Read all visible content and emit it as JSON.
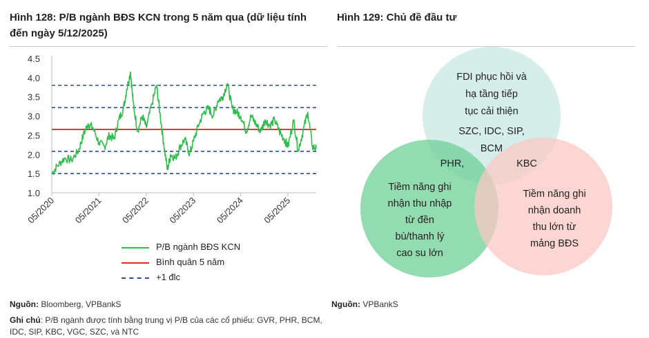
{
  "figure_left": {
    "title": "Hình 128: P/B ngành BĐS KCN trong 5 năm qua (dữ liệu tính đến ngày 5/12/2025)",
    "source_label": "Nguồn:",
    "source_text": "Bloomberg, VPBankS",
    "note_label": "Ghi chú",
    "note_text": ": P/B ngành được tính bằng trung vị P/B của các cổ phiếu: GVR, PHR, BCM, IDC, SIP, KBC, VGC, SZC, và NTC"
  },
  "figure_right": {
    "title": "Hình 129: Chủ đề đầu tư",
    "source_label": "Nguồn:",
    "source_text": "VPBankS",
    "venn": {
      "circles": [
        {
          "name": "top",
          "color": "#d3ede8",
          "lines": [
            "FDI phục hồi và",
            "hạ tầng tiếp",
            "tục cải thiện"
          ],
          "tickers": [
            "SZC, IDC, SIP,",
            "BCM"
          ]
        },
        {
          "name": "left",
          "color": "#6fcf97",
          "lines": [
            "Tiềm năng ghi",
            "nhận thu nhập",
            "từ đền",
            "bù/thanh lý",
            "cao su lớn"
          ],
          "tickers": [
            "PHR,"
          ]
        },
        {
          "name": "right",
          "color": "#f9c8c4",
          "lines": [
            "Tiềm năng ghi",
            "nhận doanh",
            "thu lớn từ",
            "mảng BĐS"
          ],
          "tickers": [
            "KBC"
          ]
        }
      ]
    }
  },
  "chart_data": {
    "type": "line",
    "title": "",
    "xlabel": "",
    "ylabel": "",
    "ylim": [
      1.0,
      4.5
    ],
    "yticks": [
      "4.5",
      "4.0",
      "3.5",
      "3.0",
      "2.5",
      "2.0",
      "1.5",
      "1.0"
    ],
    "xticks": [
      "05/2020",
      "05/2021",
      "05/2022",
      "05/2023",
      "05/2024",
      "05/2025"
    ],
    "xtick_values": [
      2020.333,
      2021.333,
      2022.333,
      2023.333,
      2024.333,
      2025.333
    ],
    "xlim": [
      2020.333,
      2025.93
    ],
    "grid": false,
    "legend_position": "bottom",
    "series": [
      {
        "name": "P/B ngành BĐS KCN",
        "color": "#2ebd4a",
        "x": [
          2020.333,
          2020.45,
          2020.6,
          2020.75,
          2020.9,
          2021.0,
          2021.1,
          2021.2,
          2021.333,
          2021.45,
          2021.55,
          2021.65,
          2021.75,
          2021.85,
          2021.92,
          2022.0,
          2022.05,
          2022.15,
          2022.25,
          2022.333,
          2022.45,
          2022.55,
          2022.62,
          2022.7,
          2022.78,
          2022.85,
          2022.95,
          2023.05,
          2023.15,
          2023.25,
          2023.333,
          2023.45,
          2023.55,
          2023.65,
          2023.75,
          2023.85,
          2023.95,
          2024.05,
          2024.15,
          2024.25,
          2024.333,
          2024.45,
          2024.55,
          2024.65,
          2024.75,
          2024.85,
          2024.95,
          2025.05,
          2025.15,
          2025.25,
          2025.333,
          2025.45,
          2025.55,
          2025.65,
          2025.75,
          2025.85,
          2025.93
        ],
        "y": [
          1.5,
          1.7,
          1.9,
          1.85,
          2.1,
          2.5,
          2.8,
          2.7,
          2.3,
          2.2,
          2.5,
          2.4,
          2.9,
          3.2,
          3.7,
          4.15,
          3.4,
          2.6,
          3.0,
          2.7,
          3.3,
          3.8,
          3.1,
          2.3,
          1.6,
          2.0,
          1.9,
          2.2,
          2.4,
          2.0,
          2.35,
          2.8,
          3.1,
          3.2,
          3.0,
          3.4,
          3.5,
          3.85,
          3.2,
          3.1,
          3.0,
          2.6,
          3.0,
          2.8,
          2.6,
          2.9,
          2.75,
          2.9,
          2.6,
          2.4,
          2.2,
          2.9,
          2.1,
          2.6,
          3.1,
          2.2,
          2.15
        ]
      },
      {
        "name": "Bình quân 5 năm",
        "color": "#e0292b",
        "value": 2.65
      },
      {
        "name": "+1 đlc",
        "color": "#2a4a9c",
        "values": [
          3.8,
          3.22,
          2.08,
          1.5
        ]
      }
    ]
  }
}
